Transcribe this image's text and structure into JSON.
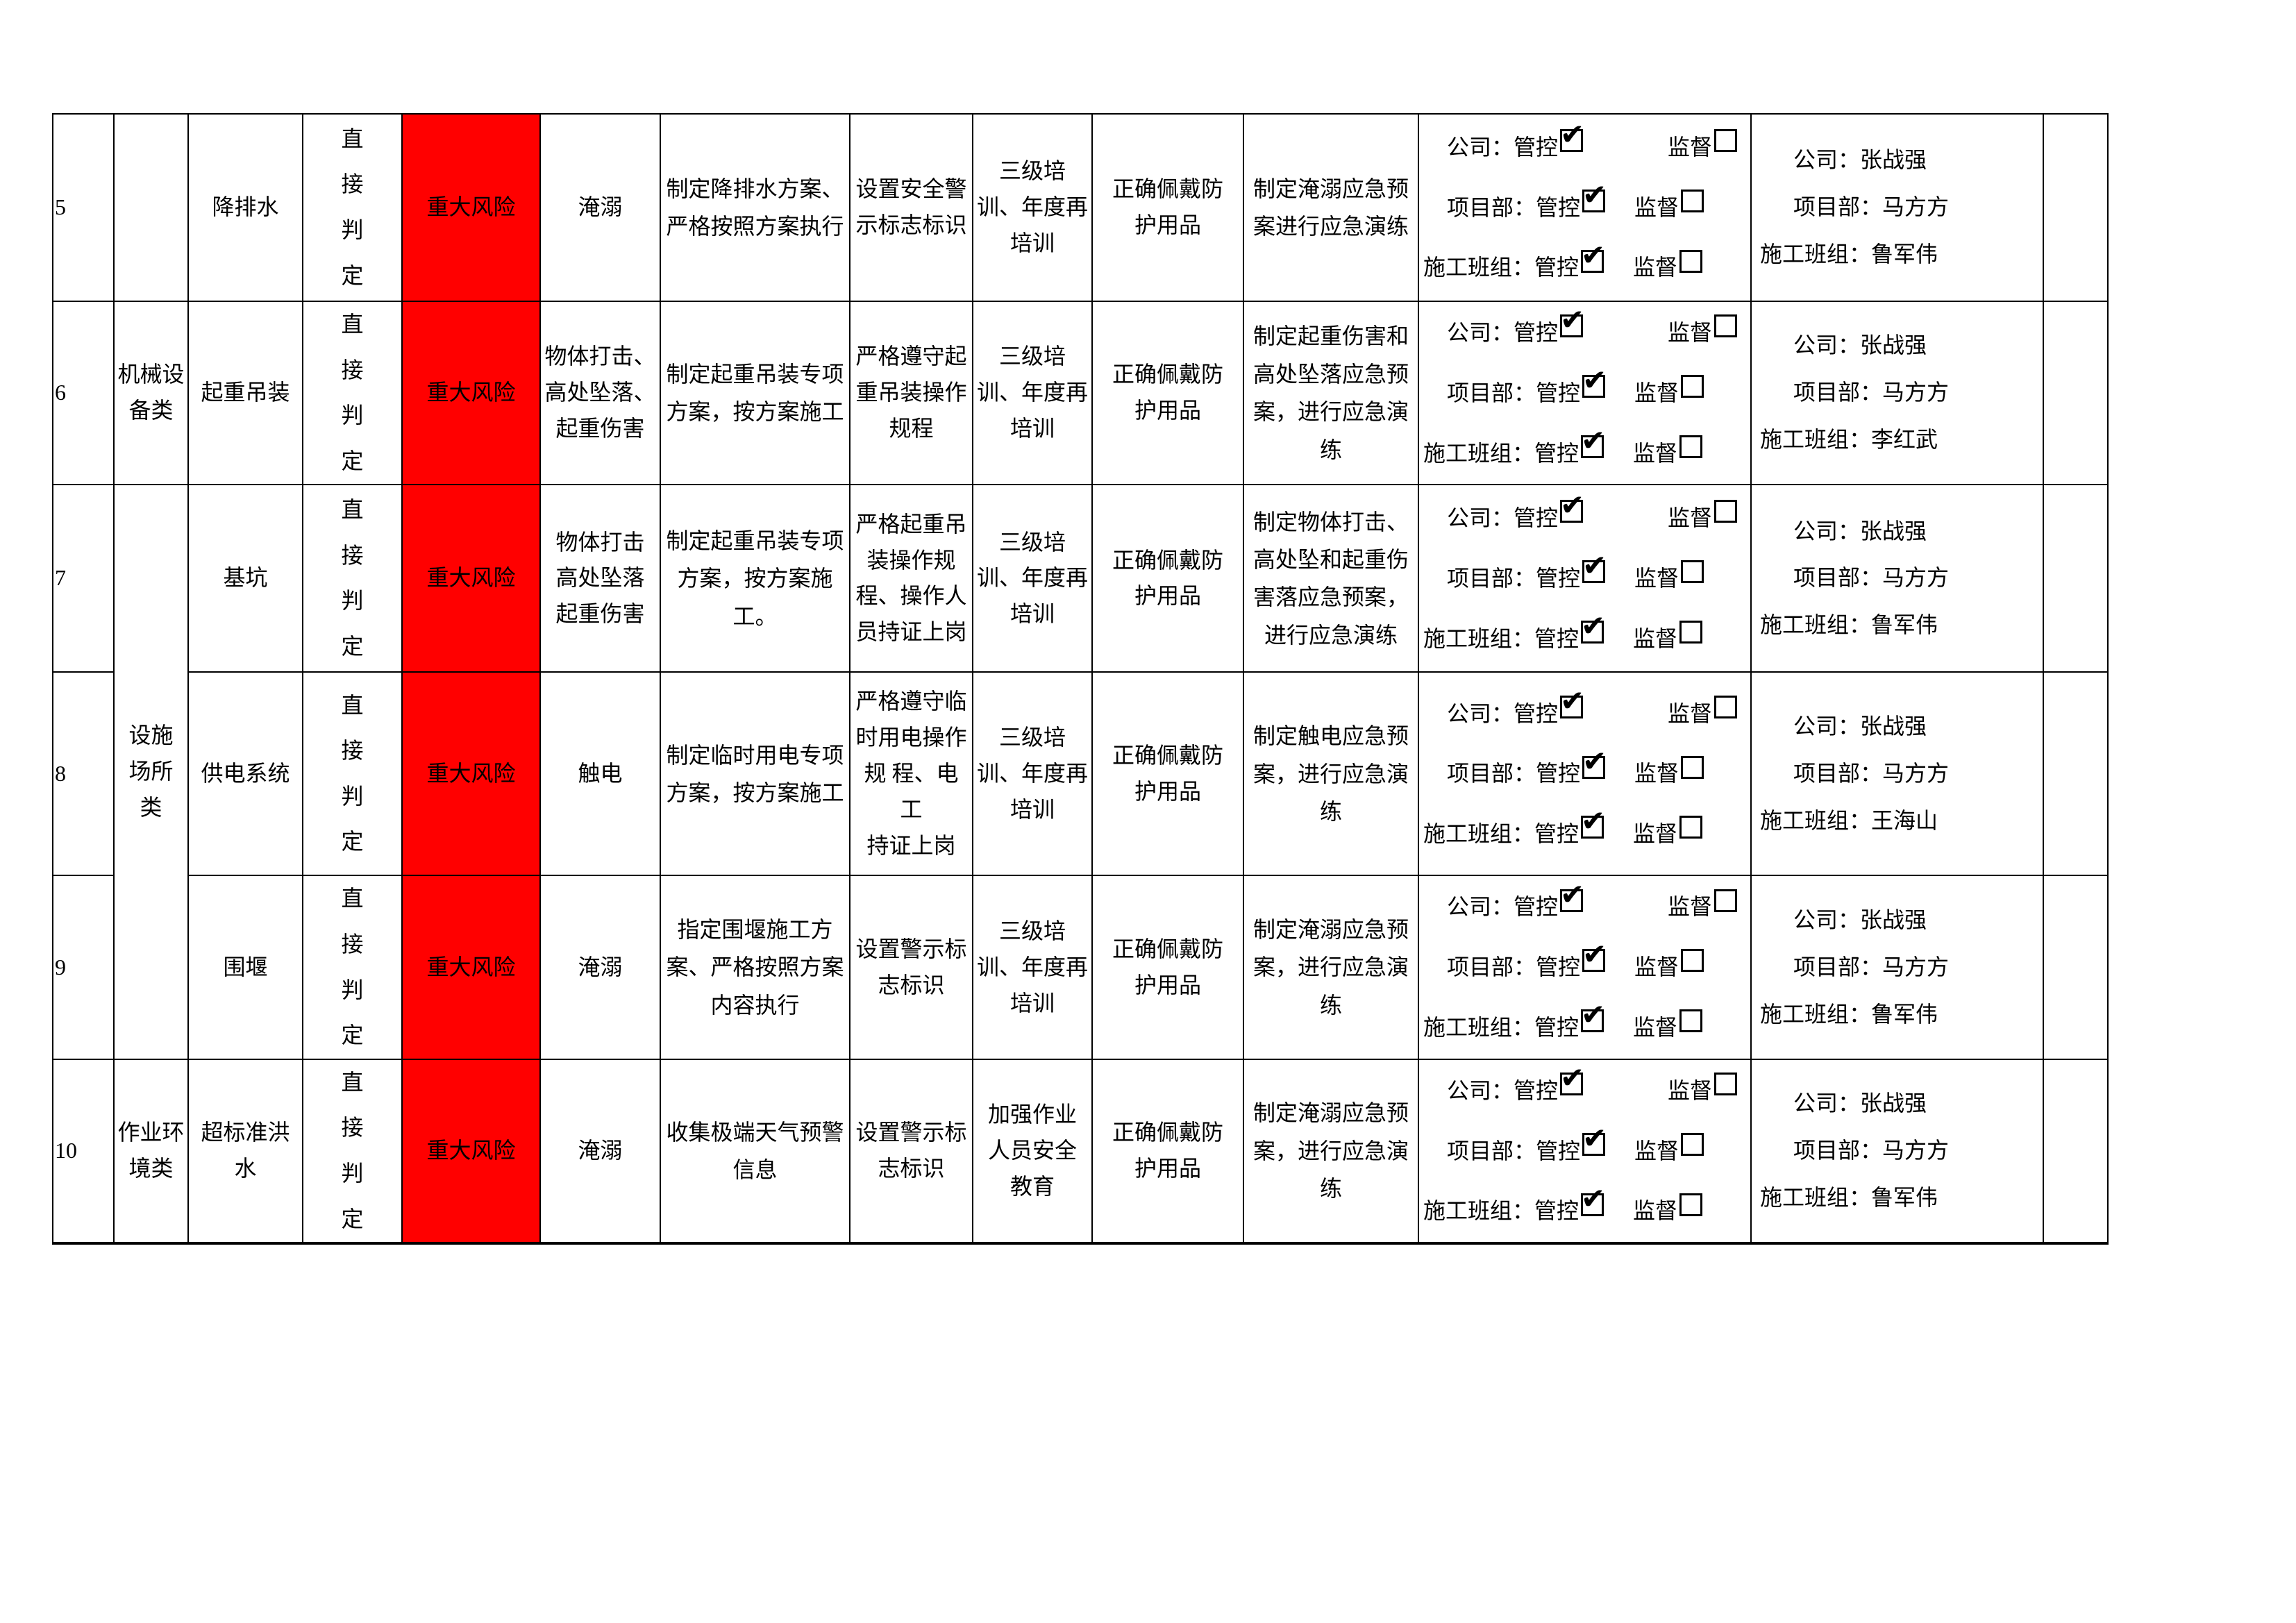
{
  "icons": {
    "checked_checkbox": "✔",
    "empty_checkbox": ""
  },
  "colors": {
    "major_risk_bg": "#ff0000",
    "border": "#000000",
    "text": "#000000"
  },
  "table": {
    "control": {
      "prefixes": [
        "公司：",
        "项目部：",
        "施工班组："
      ],
      "manage_label": "管控",
      "supervise_label": "监督",
      "manage_checked": true,
      "supervise_checked": false
    },
    "rows": [
      {
        "num": "5",
        "category": {
          "text": "",
          "rowspan": 1
        },
        "item": "降排水",
        "judgment": "直接判定",
        "risk": "重大风险",
        "hazard": "淹溺",
        "engineering": "制定降排水方案、\n严格按照方案执行",
        "management": "设置安全警\n示标志标识",
        "training": "三级培\n训、年度再\n培训",
        "ppe": "正确佩戴防\n护用品",
        "emergency": "制定淹溺应急预\n案进行应急演练",
        "responsible_lines": [
          "公司：张战强",
          "项目部：马方方",
          "施工班组：鲁军伟"
        ]
      },
      {
        "num": "6",
        "category": {
          "text": "机械设\n备类",
          "rowspan": 1
        },
        "item": "起重吊装",
        "judgment": "直接判定",
        "risk": "重大风险",
        "hazard": "物体打击、\n高处坠落、\n起重伤害",
        "engineering": "制定起重吊装专项\n方案，按方案施工",
        "management": "严格遵守起\n重吊装操作\n规程",
        "training": "三级培\n训、年度再\n培训",
        "ppe": "正确佩戴防\n护用品",
        "emergency": "制定起重伤害和\n高处坠落应急预\n案，进行应急演\n练",
        "responsible_lines": [
          "公司：张战强",
          "项目部：马方方",
          "施工班组：李红武"
        ]
      },
      {
        "num": "7",
        "category": {
          "text": "设施\n场所\n类",
          "rowspan": 3
        },
        "item": "基坑",
        "judgment": "直接判定",
        "risk": "重大风险",
        "hazard": "物体打击\n高处坠落\n起重伤害",
        "engineering": "制定起重吊装专项\n方案，按方案施工。",
        "management": "严格起重吊\n装操作规\n程、操作人\n员持证上岗",
        "training": "三级培\n训、年度再\n培训",
        "ppe": "正确佩戴防\n护用品",
        "emergency": "制定物体打击、\n高处坠和起重伤\n害落应急预案，\n进行应急演练",
        "responsible_lines": [
          "公司：张战强",
          "项目部：马方方",
          "施工班组：鲁军伟"
        ]
      },
      {
        "num": "8",
        "category": null,
        "item": "供电系统",
        "judgment": "直接判定",
        "risk": "重大风险",
        "hazard": "触电",
        "engineering": "制定临时用电专项\n方案，按方案施工",
        "management": "严格遵守临\n时用电操作\n规 程、电工\n持证上岗",
        "training": "三级培\n训、年度再\n培训",
        "ppe": "正确佩戴防\n护用品",
        "emergency": "制定触电应急预\n案，进行应急演\n练",
        "responsible_lines": [
          "公司：张战强",
          "项目部：马方方",
          "施工班组：王海山"
        ]
      },
      {
        "num": "9",
        "category": null,
        "item": "围堰",
        "judgment": "直接判定",
        "risk": "重大风险",
        "hazard": "淹溺",
        "engineering": "指定围堰施工方\n案、严格按照方案\n内容执行",
        "management": "设置警示标\n志标识",
        "training": "三级培\n训、年度再\n培训",
        "ppe": "正确佩戴防\n护用品",
        "emergency": "制定淹溺应急预\n案，进行应急演\n练",
        "responsible_lines": [
          "公司：张战强",
          "项目部：马方方",
          "施工班组：鲁军伟"
        ]
      },
      {
        "num": "10",
        "category": {
          "text": "作业环\n境类",
          "rowspan": 1
        },
        "item": "超标准洪\n水",
        "judgment": "直接判定",
        "risk": "重大风险",
        "hazard": "淹溺",
        "engineering": "收集极端天气预警\n信息",
        "management": "设置警示标\n志标识",
        "training": "加强作业\n人员安全\n教育",
        "ppe": "正确佩戴防\n护用品",
        "emergency": "制定淹溺应急预\n案，进行应急演\n练",
        "responsible_lines": [
          "公司：张战强",
          "项目部：马方方",
          "施工班组：鲁军伟"
        ]
      }
    ]
  }
}
